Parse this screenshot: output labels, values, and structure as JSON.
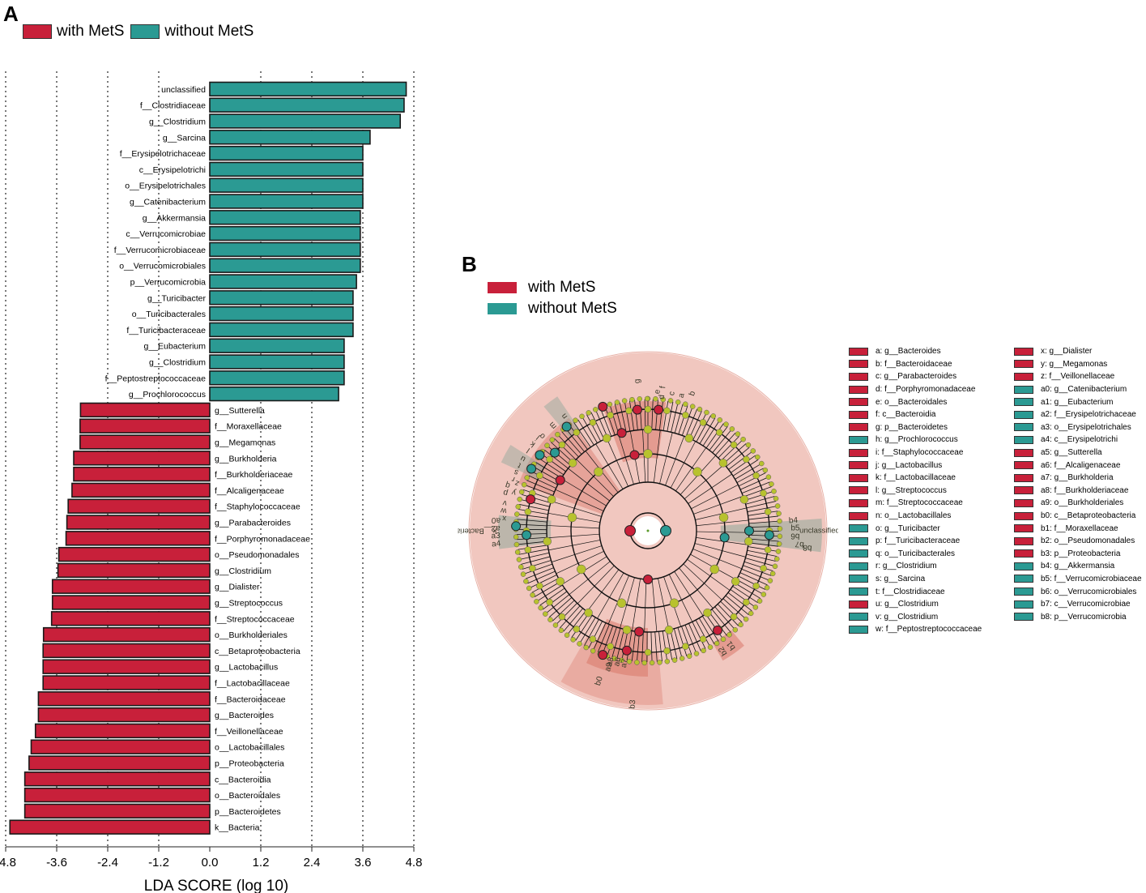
{
  "panels": {
    "a": "A",
    "b": "B"
  },
  "colors": {
    "with": "#c8203a",
    "without": "#2b9a93",
    "bar_stroke": "#1a1a1a",
    "node_fill": "#b8c22e",
    "clado_bg": "#f1c7bf",
    "clado_wedge": "#d9776a"
  },
  "legend": {
    "with_label": "with MetS",
    "without_label": "without MetS"
  },
  "chart_data": {
    "type": "bar",
    "orientation": "horizontal",
    "xlabel": "LDA SCORE (log 10)",
    "xlim": [
      -4.8,
      4.8
    ],
    "xticks": [
      -4.8,
      -3.6,
      -2.4,
      -1.2,
      0.0,
      1.2,
      2.4,
      3.6,
      4.8
    ],
    "xtick_labels": [
      "-4.8",
      "-3.6",
      "-2.4",
      "-1.2",
      "0.0",
      "1.2",
      "2.4",
      "3.6",
      "4.8"
    ],
    "grid": "vertical dotted at ticks",
    "series": [
      {
        "name": "without MetS",
        "color_key": "without",
        "labels": [
          "unclassified",
          "f__Clostridiaceae",
          "g__Clostridium",
          "g__Sarcina",
          "f__Erysipelotrichaceae",
          "c__Erysipelotrichi",
          "o__Erysipelotrichales",
          "g__Catenibacterium",
          "g__Akkermansia",
          "c__Verrucomicrobiae",
          "f__Verrucomicrobiaceae",
          "o__Verrucomicrobiales",
          "p__Verrucomicrobia",
          "g__Turicibacter",
          "o__Turicibacterales",
          "f__Turicibacteraceae",
          "g__Eubacterium",
          "g__Clostridium",
          "f__Peptostreptococcaceae",
          "g__Prochlorococcus"
        ],
        "values": [
          4.62,
          4.57,
          4.48,
          3.77,
          3.6,
          3.6,
          3.6,
          3.6,
          3.54,
          3.54,
          3.54,
          3.54,
          3.45,
          3.37,
          3.37,
          3.37,
          3.16,
          3.16,
          3.16,
          3.03
        ]
      },
      {
        "name": "with MetS",
        "color_key": "with",
        "labels": [
          "g__Sutterella",
          "f__Moraxellaceae",
          "g__Megamonas",
          "g__Burkholderia",
          "f__Burkholderiaceae",
          "f__Alcaligenaceae",
          "f__Staphylococcaceae",
          "g__Parabacteroides",
          "f__Porphyromonadaceae",
          "o__Pseudomonadales",
          "g__Clostridium",
          "g__Dialister",
          "g__Streptococcus",
          "f__Streptococcaceae",
          "o__Burkholderiales",
          "c__Betaproteobacteria",
          "g__Lactobacillus",
          "f__Lactobacillaceae",
          "f__Bacteroidaceae",
          "g__Bacteroides",
          "f__Veillonellaceae",
          "o__Lactobacillales",
          "p__Proteobacteria",
          "c__Bacteroidia",
          "o__Bacteroidales",
          "p__Bacteroidetes",
          "k__Bacteria"
        ],
        "values": [
          -3.04,
          -3.05,
          -3.05,
          -3.2,
          -3.2,
          -3.24,
          -3.33,
          -3.36,
          -3.38,
          -3.55,
          -3.57,
          -3.7,
          -3.7,
          -3.72,
          -3.91,
          -3.92,
          -3.92,
          -3.92,
          -4.03,
          -4.03,
          -4.1,
          -4.2,
          -4.25,
          -4.35,
          -4.35,
          -4.35,
          -4.7
        ]
      }
    ]
  },
  "cladogram": {
    "ring_labels": [
      "unclassified",
      "k__Bacteria",
      "g",
      "f",
      "e",
      "d",
      "c",
      "a",
      "b",
      "n",
      "m",
      "o",
      "j",
      "k",
      "l",
      "u",
      "t",
      "s",
      "r",
      "q",
      "p",
      "v",
      "w",
      "x",
      "y",
      "z",
      "a4",
      "a3",
      "a2",
      "a0",
      "b4",
      "b5",
      "b6",
      "b7",
      "b8",
      "a9",
      "a8",
      "a6",
      "a7",
      "b0",
      "b3",
      "b1",
      "b2"
    ],
    "key_left": [
      {
        "text": "a: g__Bacteroides",
        "c": "with"
      },
      {
        "text": "b: f__Bacteroidaceae",
        "c": "with"
      },
      {
        "text": "c: g__Parabacteroides",
        "c": "with"
      },
      {
        "text": "d: f__Porphyromonadaceae",
        "c": "with"
      },
      {
        "text": "e: o__Bacteroidales",
        "c": "with"
      },
      {
        "text": "f: c__Bacteroidia",
        "c": "with"
      },
      {
        "text": "g: p__Bacteroidetes",
        "c": "with"
      },
      {
        "text": "h: g__Prochlorococcus",
        "c": "without"
      },
      {
        "text": "i: f__Staphylococcaceae",
        "c": "with"
      },
      {
        "text": "j: g__Lactobacillus",
        "c": "with"
      },
      {
        "text": "k: f__Lactobacillaceae",
        "c": "with"
      },
      {
        "text": "l: g__Streptococcus",
        "c": "with"
      },
      {
        "text": "m: f__Streptococcaceae",
        "c": "with"
      },
      {
        "text": "n: o__Lactobacillales",
        "c": "with"
      },
      {
        "text": "o: g__Turicibacter",
        "c": "without"
      },
      {
        "text": "p: f__Turicibacteraceae",
        "c": "without"
      },
      {
        "text": "q: o__Turicibacterales",
        "c": "without"
      },
      {
        "text": "r: g__Clostridium",
        "c": "without"
      },
      {
        "text": "s: g__Sarcina",
        "c": "without"
      },
      {
        "text": "t: f__Clostridiaceae",
        "c": "without"
      },
      {
        "text": "u: g__Clostridium",
        "c": "with"
      },
      {
        "text": "v: g__Clostridium",
        "c": "without"
      },
      {
        "text": "w: f__Peptostreptococcaceae",
        "c": "without"
      }
    ],
    "key_right": [
      {
        "text": "x: g__Dialister",
        "c": "with"
      },
      {
        "text": "y: g__Megamonas",
        "c": "with"
      },
      {
        "text": "z: f__Veillonellaceae",
        "c": "with"
      },
      {
        "text": "a0: g__Catenibacterium",
        "c": "without"
      },
      {
        "text": "a1: g__Eubacterium",
        "c": "without"
      },
      {
        "text": "a2: f__Erysipelotrichaceae",
        "c": "without"
      },
      {
        "text": "a3: o__Erysipelotrichales",
        "c": "without"
      },
      {
        "text": "a4: c__Erysipelotrichi",
        "c": "without"
      },
      {
        "text": "a5: g__Sutterella",
        "c": "with"
      },
      {
        "text": "a6: f__Alcaligenaceae",
        "c": "with"
      },
      {
        "text": "a7: g__Burkholderia",
        "c": "with"
      },
      {
        "text": "a8: f__Burkholderiaceae",
        "c": "with"
      },
      {
        "text": "a9: o__Burkholderiales",
        "c": "with"
      },
      {
        "text": "b0: c__Betaproteobacteria",
        "c": "with"
      },
      {
        "text": "b1: f__Moraxellaceae",
        "c": "with"
      },
      {
        "text": "b2: o__Pseudomonadales",
        "c": "with"
      },
      {
        "text": "b3: p__Proteobacteria",
        "c": "with"
      },
      {
        "text": "b4: g__Akkermansia",
        "c": "without"
      },
      {
        "text": "b5: f__Verrucomicrobiaceae",
        "c": "without"
      },
      {
        "text": "b6: o__Verrucomicrobiales",
        "c": "without"
      },
      {
        "text": "b7: c__Verrucomicrobiae",
        "c": "without"
      },
      {
        "text": "b8: p__Verrucomicrobia",
        "c": "without"
      }
    ]
  }
}
